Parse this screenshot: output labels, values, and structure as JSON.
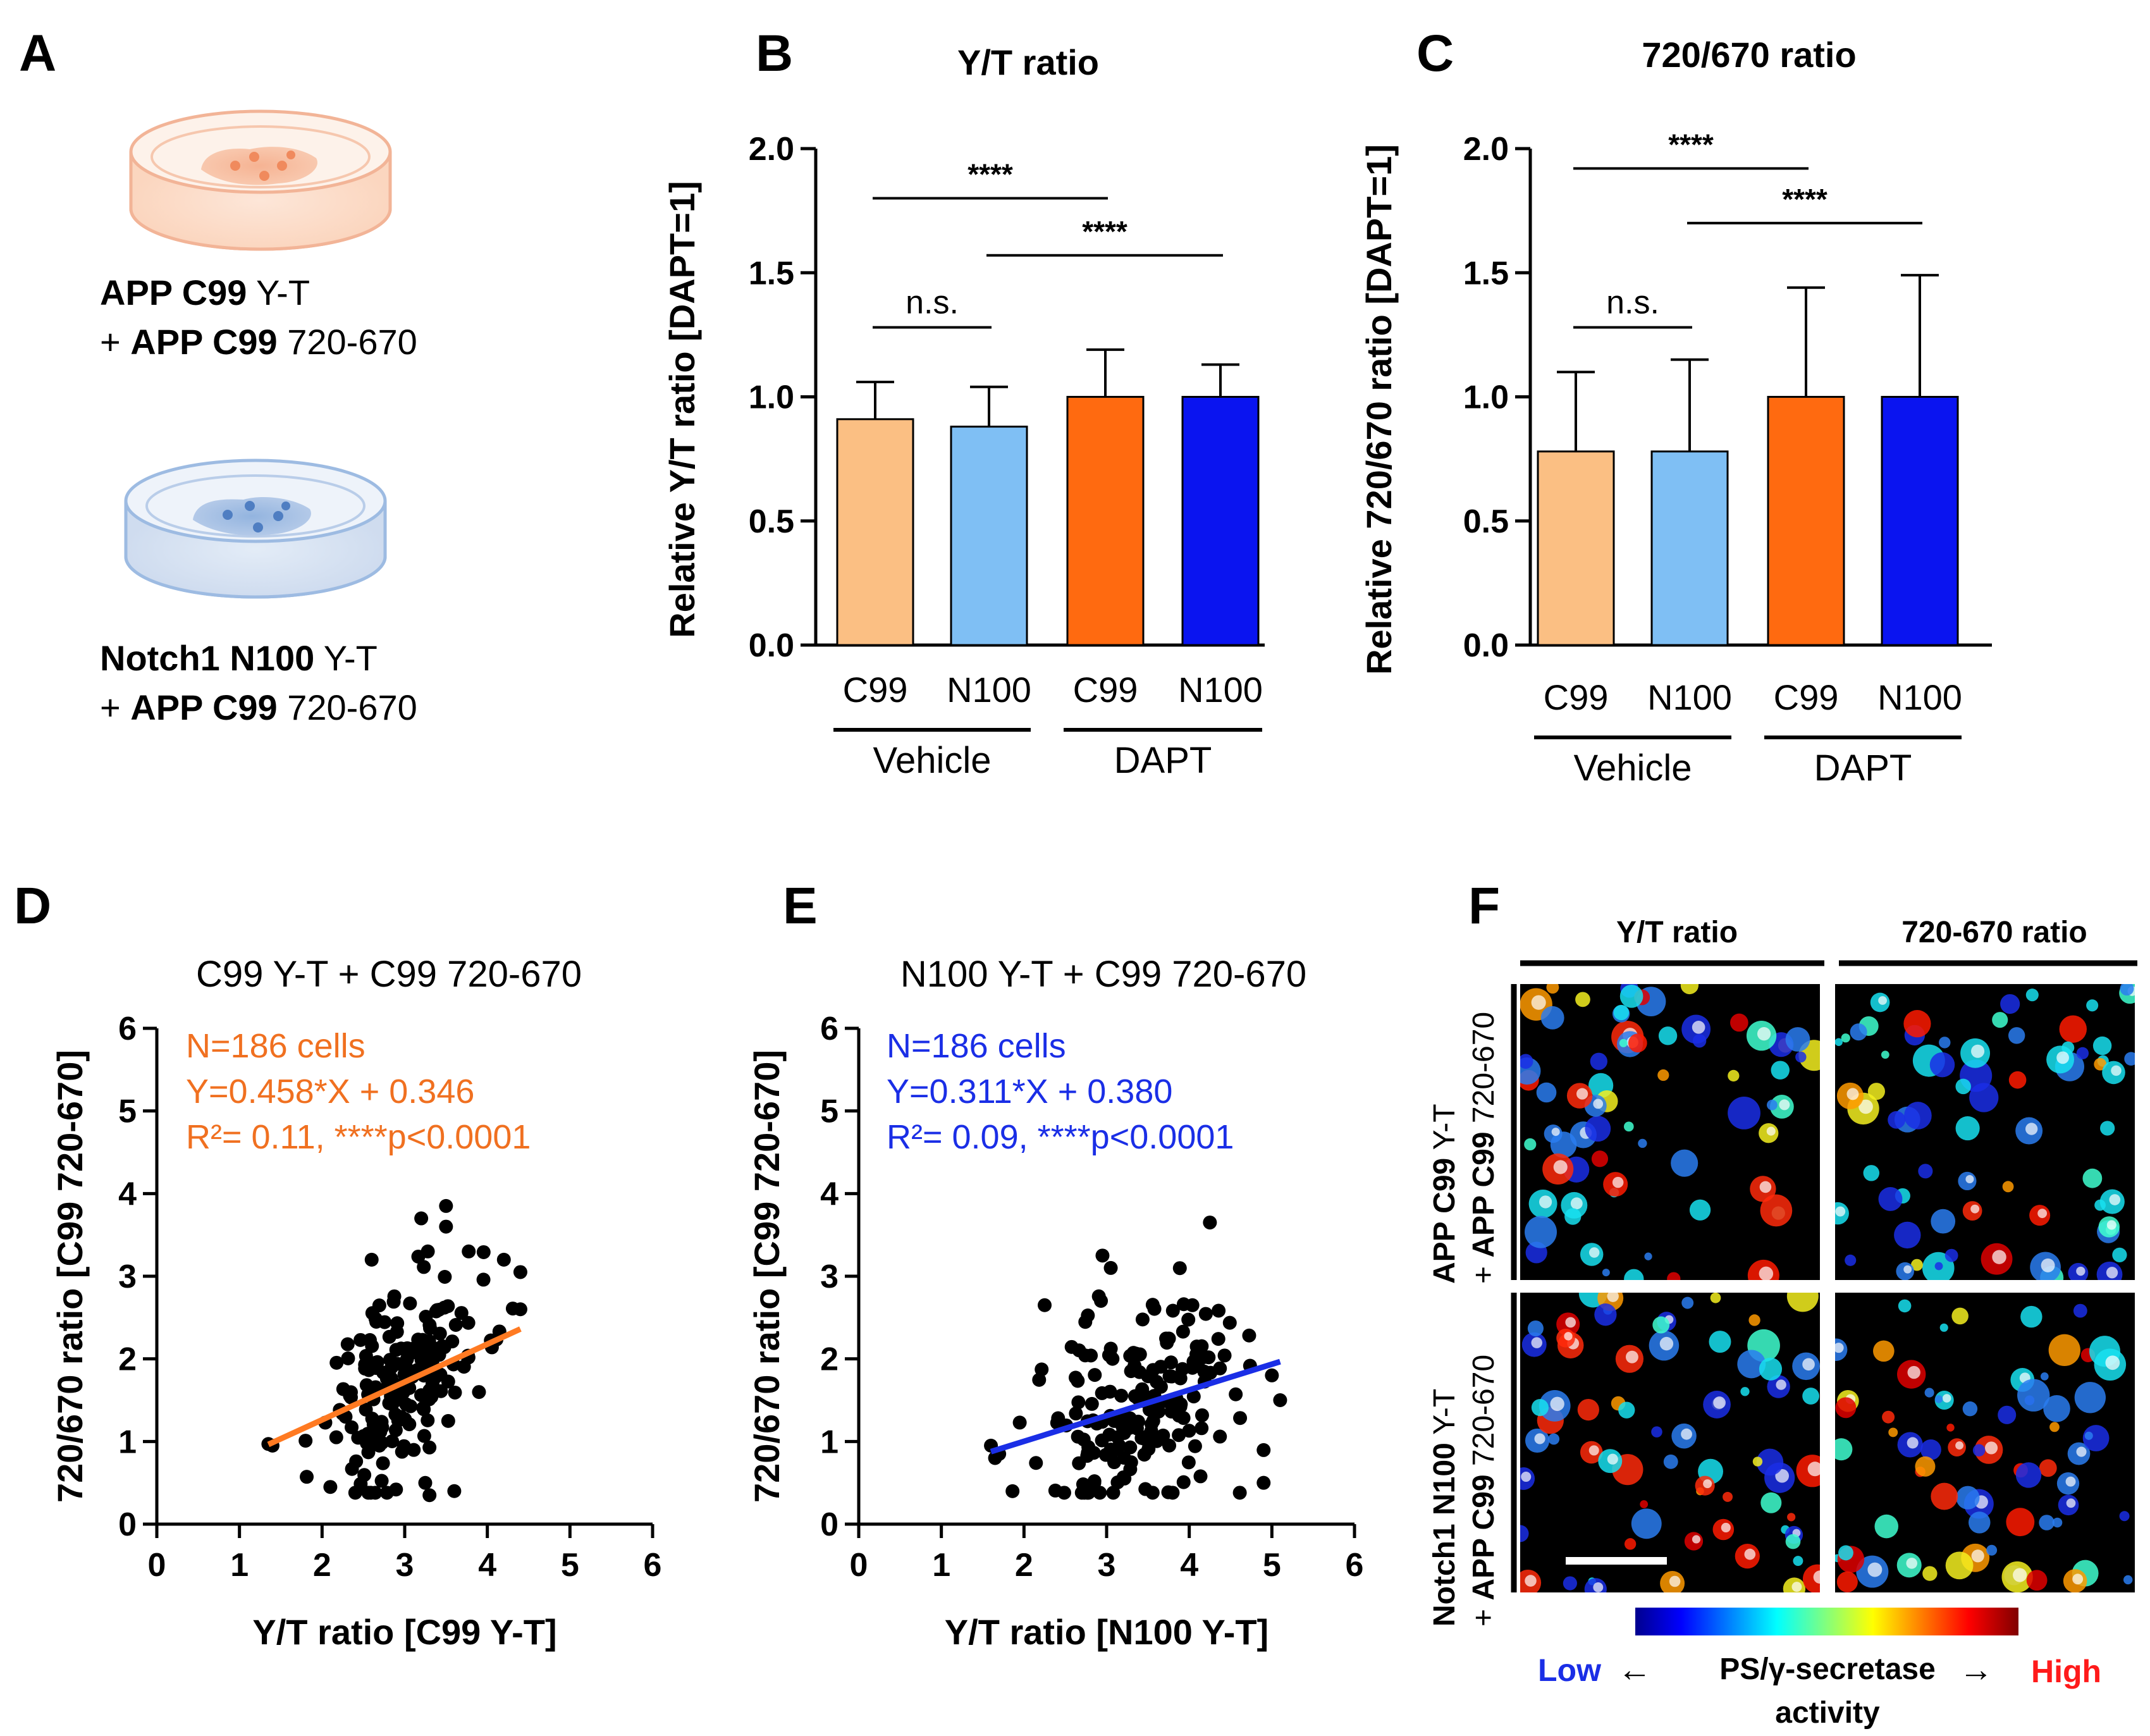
{
  "panels": {
    "A": "A",
    "B": "B",
    "C": "C",
    "D": "D",
    "E": "E",
    "F": "F"
  },
  "panel_a": {
    "dish1": {
      "line1_bold": "APP C99",
      "line1_rest": " Y-T",
      "line2_prefix": "+ ",
      "line2_bold": "APP C99",
      "line2_rest": " 720-670"
    },
    "dish2": {
      "line1_bold": "Notch1 N100",
      "line1_rest": " Y-T",
      "line2_prefix": "+ ",
      "line2_bold": "APP C99",
      "line2_rest": " 720-670"
    },
    "colors": {
      "dish1": "#f2a27c",
      "dish2": "#7fa3d6",
      "cell1": "#f08a5d",
      "cell2": "#6f96cf"
    }
  },
  "chart_data": [
    {
      "id": "B",
      "type": "bar",
      "title": "Y/T ratio",
      "ylabel": "Relative Y/T ratio [DAPT=1]",
      "ylim": [
        0,
        2.0
      ],
      "yticks": [
        0.0,
        0.5,
        1.0,
        1.5,
        2.0
      ],
      "ytick_labels": [
        "0.0",
        "0.5",
        "1.0",
        "1.5",
        "2.0"
      ],
      "categories": [
        "C99",
        "N100",
        "C99",
        "N100"
      ],
      "groups": [
        "Vehicle",
        "DAPT"
      ],
      "values": [
        0.91,
        0.88,
        1.0,
        1.0
      ],
      "errors": [
        0.15,
        0.16,
        0.19,
        0.13
      ],
      "colors": [
        "#fbbf83",
        "#7fbff4",
        "#ff6a10",
        "#0a14f0"
      ],
      "annotations": [
        {
          "text": "****",
          "from": 0,
          "to": 2,
          "y": 1.8
        },
        {
          "text": "****",
          "from": 1,
          "to": 3,
          "y": 1.57
        },
        {
          "text": "n.s.",
          "from": 0,
          "to": 1,
          "y": 1.28
        }
      ]
    },
    {
      "id": "C",
      "type": "bar",
      "title": "720/670 ratio",
      "ylabel": "Relative 720/670 ratio [DAPT=1]",
      "ylim": [
        0,
        2.0
      ],
      "yticks": [
        0.0,
        0.5,
        1.0,
        1.5,
        2.0
      ],
      "ytick_labels": [
        "0.0",
        "0.5",
        "1.0",
        "1.5",
        "2.0"
      ],
      "categories": [
        "C99",
        "N100",
        "C99",
        "N100"
      ],
      "groups": [
        "Vehicle",
        "DAPT"
      ],
      "values": [
        0.78,
        0.78,
        1.0,
        1.0
      ],
      "errors": [
        0.32,
        0.37,
        0.44,
        0.49
      ],
      "colors": [
        "#fbbf83",
        "#7fbff4",
        "#ff6a10",
        "#0a14f0"
      ],
      "annotations": [
        {
          "text": "****",
          "from": 0,
          "to": 2,
          "y": 1.92
        },
        {
          "text": "****",
          "from": 1,
          "to": 3,
          "y": 1.7
        },
        {
          "text": "n.s.",
          "from": 0,
          "to": 1,
          "y": 1.28
        }
      ]
    },
    {
      "id": "D",
      "type": "scatter",
      "title": "C99 Y-T + C99 720-670",
      "xlabel": "Y/T ratio [C99 Y-T]",
      "ylabel": "720/670 ratio [C99 720-670]",
      "xlim": [
        0,
        6
      ],
      "ylim": [
        0,
        6
      ],
      "xticks": [
        0,
        1,
        2,
        3,
        4,
        5,
        6
      ],
      "yticks": [
        0,
        1,
        2,
        3,
        4,
        5,
        6
      ],
      "stats": [
        "N=186 cells",
        "Y=0.458*X + 0.346",
        "R²= 0.11, ****p<0.0001"
      ],
      "stat_color": "#f07020",
      "line_color": "#ff7a22",
      "fit": {
        "slope": 0.458,
        "intercept": 0.346,
        "x_range": [
          1.35,
          4.4
        ]
      },
      "center": [
        3.0,
        1.72
      ],
      "spread": [
        0.48,
        0.62
      ],
      "n": 186,
      "seed": 11,
      "extra_points": [
        [
          1.35,
          0.97
        ],
        [
          1.4,
          0.95
        ],
        [
          3.5,
          3.85
        ],
        [
          3.5,
          3.6
        ],
        [
          3.2,
          3.7
        ],
        [
          4.4,
          3.05
        ],
        [
          4.4,
          2.6
        ],
        [
          3.3,
          0.35
        ],
        [
          3.6,
          0.4
        ],
        [
          2.1,
          0.45
        ],
        [
          4.2,
          3.2
        ],
        [
          2.6,
          3.2
        ]
      ]
    },
    {
      "id": "E",
      "type": "scatter",
      "title": "N100 Y-T + C99 720-670",
      "xlabel": "Y/T ratio [N100 Y-T]",
      "ylabel": "720/670 ratio [C99 720-670]",
      "xlim": [
        0,
        6
      ],
      "ylim": [
        0,
        6
      ],
      "xticks": [
        0,
        1,
        2,
        3,
        4,
        5,
        6
      ],
      "yticks": [
        0,
        1,
        2,
        3,
        4,
        5,
        6
      ],
      "stats": [
        "N=186 cells",
        "Y=0.311*X + 0.380",
        "R²= 0.09, ****p<0.0001"
      ],
      "stat_color": "#1a2ee6",
      "line_color": "#1a2ee6",
      "fit": {
        "slope": 0.311,
        "intercept": 0.38,
        "x_range": [
          1.6,
          5.1
        ]
      },
      "center": [
        3.35,
        1.5
      ],
      "spread": [
        0.55,
        0.58
      ],
      "n": 186,
      "seed": 23,
      "extra_points": [
        [
          1.6,
          0.95
        ],
        [
          1.65,
          0.8
        ],
        [
          2.25,
          2.65
        ],
        [
          2.95,
          3.25
        ],
        [
          4.25,
          3.65
        ],
        [
          3.05,
          3.1
        ],
        [
          5.1,
          1.5
        ],
        [
          4.9,
          0.5
        ],
        [
          5.0,
          1.8
        ],
        [
          1.7,
          0.85
        ]
      ]
    }
  ],
  "panel_f": {
    "col1": "Y/T ratio",
    "col2": "720-670 ratio",
    "row1": {
      "line1_bold": "APP C99",
      "line1_rest": " Y-T",
      "line2_prefix": "+ ",
      "line2_bold": "APP C99",
      "line2_rest": " 720-670"
    },
    "row2": {
      "line1_bold": "Notch1 N100",
      "line1_rest": " Y-T",
      "line2_prefix": "+ ",
      "line2_bold": "APP C99",
      "line2_rest": " 720-670"
    },
    "low": "Low",
    "high": "High",
    "arrow_left": "←",
    "arrow_right": "→",
    "caption_line1": "PS/γ-secretase",
    "caption_line2": "activity",
    "low_color": "#1a2ee6",
    "high_color": "#ff1a1a"
  }
}
